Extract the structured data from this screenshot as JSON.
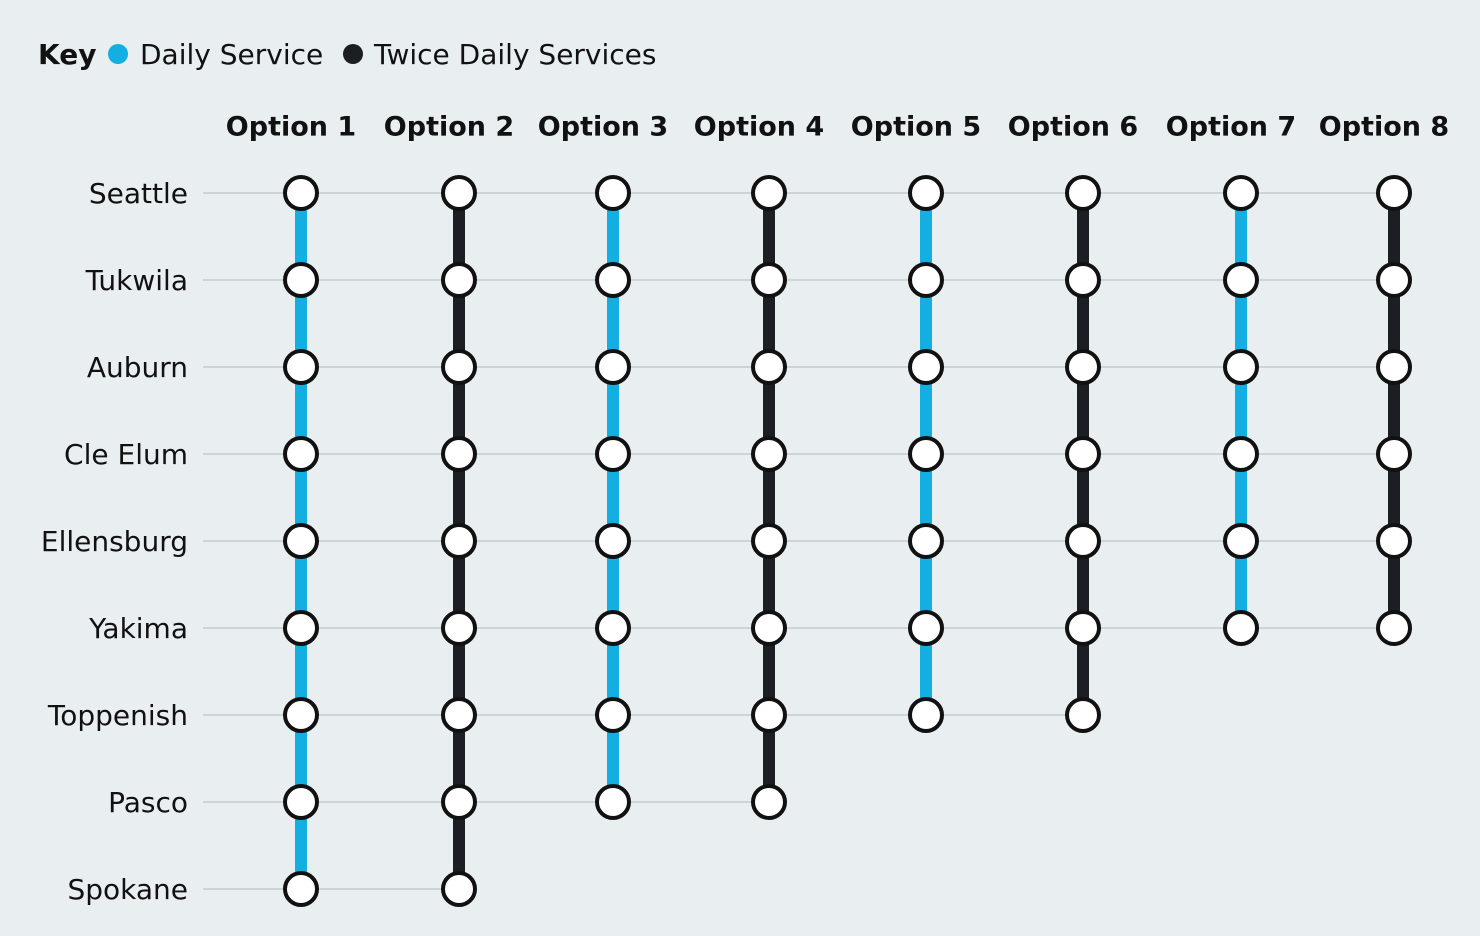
{
  "key": {
    "title": "Key",
    "items": [
      {
        "label": "Daily Service",
        "color": "#13aee2"
      },
      {
        "label": "Twice Daily Services",
        "color": "#1b1f23"
      }
    ]
  },
  "stations": [
    "Seattle",
    "Tukwila",
    "Auburn",
    "Cle Elum",
    "Ellensburg",
    "Yakima",
    "Toppenish",
    "Pasco",
    "Spokane"
  ],
  "options": [
    {
      "label": "Option 1",
      "color": "#13aee2",
      "end": "Spokane"
    },
    {
      "label": "Option 2",
      "color": "#1b1f23",
      "end": "Spokane"
    },
    {
      "label": "Option 3",
      "color": "#13aee2",
      "end": "Pasco"
    },
    {
      "label": "Option 4",
      "color": "#1b1f23",
      "end": "Pasco"
    },
    {
      "label": "Option 5",
      "color": "#13aee2",
      "end": "Toppenish"
    },
    {
      "label": "Option 6",
      "color": "#1b1f23",
      "end": "Toppenish"
    },
    {
      "label": "Option 7",
      "color": "#13aee2",
      "end": "Yakima"
    },
    {
      "label": "Option 8",
      "color": "#1b1f23",
      "end": "Yakima"
    }
  ]
}
